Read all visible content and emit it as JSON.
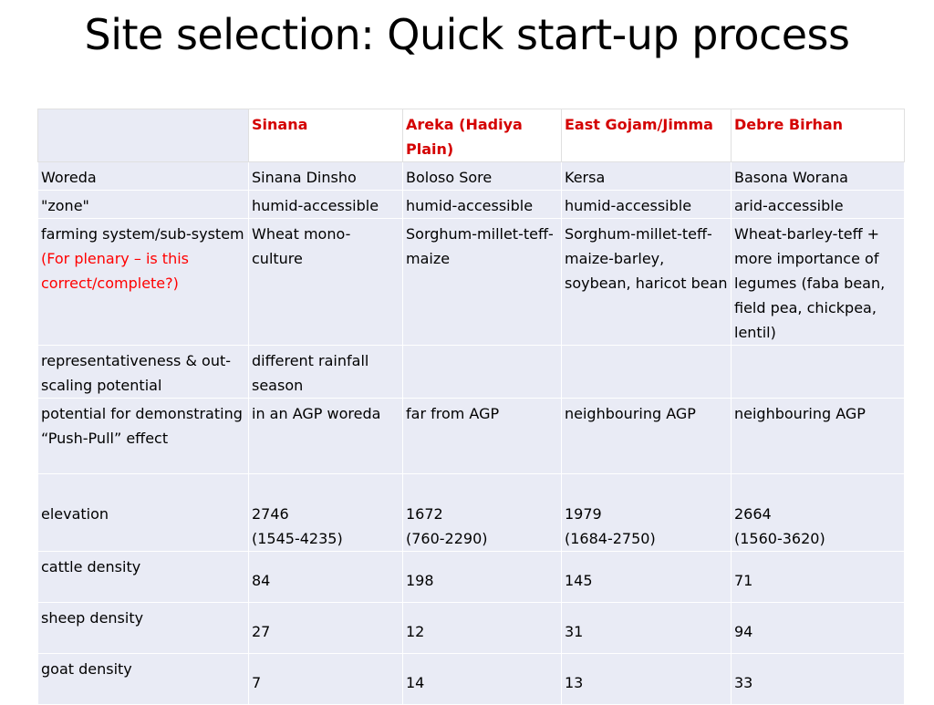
{
  "title": "Site selection: Quick start-up process",
  "table": {
    "columns": [
      "",
      "Sinana",
      "Areka (Hadiya Plain)",
      "East Gojam/Jimma",
      "Debre Birhan"
    ],
    "rows": [
      {
        "label": "Woreda",
        "cells": [
          "Sinana Dinsho",
          "Boloso Sore",
          "Kersa",
          "Basona Worana"
        ]
      },
      {
        "label": "\"zone\"",
        "cells": [
          "humid-accessible",
          "humid-accessible",
          "humid-accessible",
          "arid-accessible"
        ]
      },
      {
        "label": "farming system/sub-system",
        "label_note": "(For plenary – is this correct/complete?)",
        "cells": [
          "Wheat mono-culture",
          "Sorghum-millet-teff-maize",
          "Sorghum-millet-teff-maize-barley, soybean, haricot bean",
          "Wheat-barley-teff + more importance of legumes (faba bean, field pea, chickpea, lentil)"
        ]
      },
      {
        "label": "representativeness & out-scaling potential",
        "cells": [
          "different rainfall season",
          "",
          "",
          ""
        ]
      },
      {
        "label": "potential for demonstrating “Push-Pull” effect",
        "cells": [
          "in an AGP woreda",
          "far from AGP",
          "neighbouring AGP",
          "neighbouring AGP"
        ]
      },
      {
        "label": "elevation",
        "cells": [
          {
            "value": "2746",
            "range": "(1545-4235)"
          },
          {
            "value": "1672",
            "range": "(760-2290)"
          },
          {
            "value": "1979",
            "range": "(1684-2750)"
          },
          {
            "value": "2664",
            "range": "(1560-3620)"
          }
        ]
      },
      {
        "label": "cattle density",
        "cells": [
          "84",
          "198",
          "145",
          "71"
        ]
      },
      {
        "label": "sheep density",
        "cells": [
          "27",
          "12",
          "31",
          "94"
        ]
      },
      {
        "label": "goat density",
        "cells": [
          "7",
          "14",
          "13",
          "33"
        ]
      }
    ]
  },
  "colors": {
    "header_text": "#d40000",
    "note_text": "#ff0000",
    "cell_background": "#e9ebf5"
  }
}
